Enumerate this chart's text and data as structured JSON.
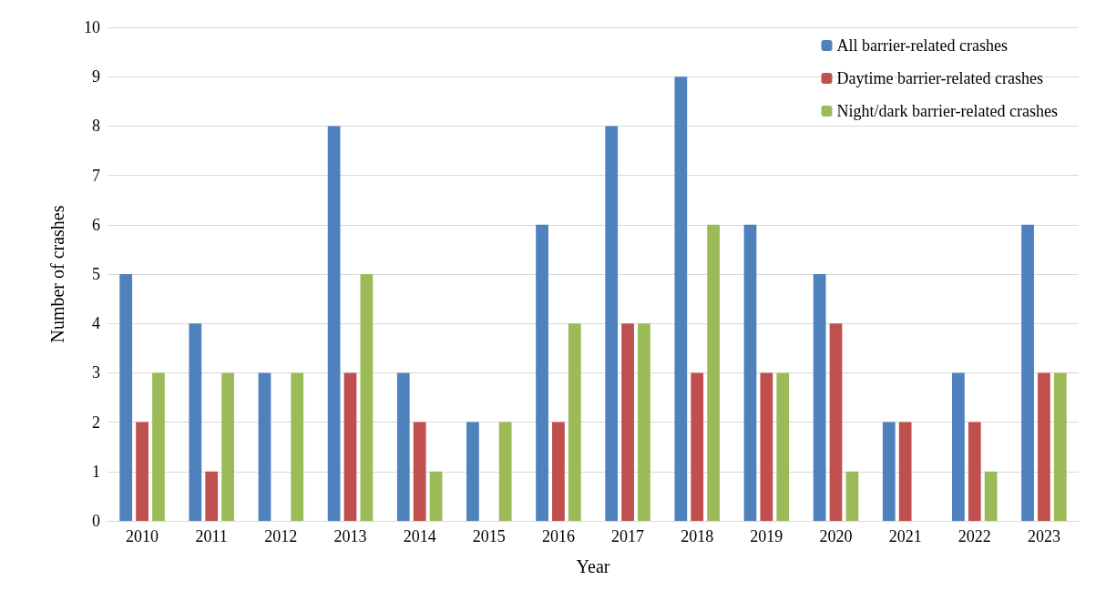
{
  "chart_data": {
    "type": "bar",
    "xlabel": "Year",
    "ylabel": "Number of crashes",
    "categories": [
      "2010",
      "2011",
      "2012",
      "2013",
      "2014",
      "2015",
      "2016",
      "2017",
      "2018",
      "2019",
      "2020",
      "2021",
      "2022",
      "2023"
    ],
    "series": [
      {
        "name": "All barrier-related crashes",
        "color": "#4f81bd",
        "values": [
          5,
          4,
          3,
          8,
          3,
          2,
          6,
          8,
          9,
          6,
          5,
          2,
          3,
          6
        ]
      },
      {
        "name": "Daytime barrier-related crashes",
        "color": "#c0504d",
        "values": [
          2,
          1,
          0,
          3,
          2,
          0,
          2,
          4,
          3,
          3,
          4,
          2,
          2,
          3
        ]
      },
      {
        "name": "Night/dark barrier-related crashes",
        "color": "#9bbb59",
        "values": [
          3,
          3,
          3,
          5,
          1,
          2,
          4,
          4,
          6,
          3,
          1,
          0,
          1,
          3
        ]
      }
    ],
    "ylim": [
      0,
      10
    ],
    "yticks": [
      0,
      1,
      2,
      3,
      4,
      5,
      6,
      7,
      8,
      9,
      10
    ],
    "grid": "y",
    "legend": "top right"
  }
}
